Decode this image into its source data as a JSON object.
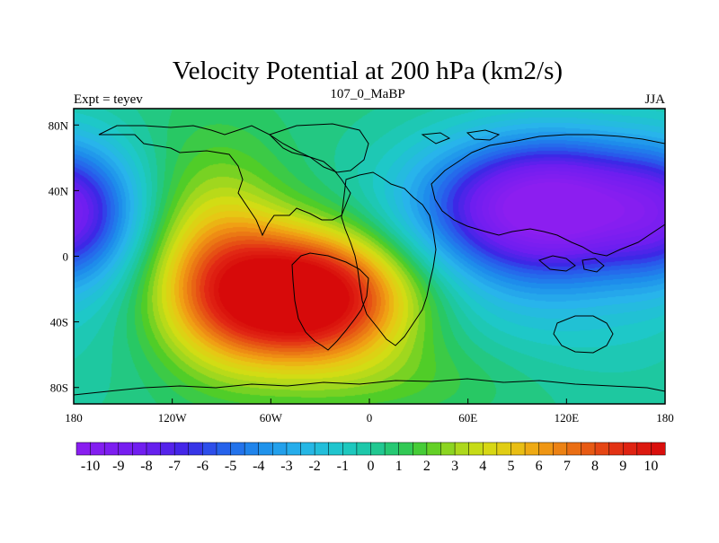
{
  "chart_data": {
    "type": "heatmap",
    "title": "Velocity Potential at 200 hPa (km2/s)",
    "subtitle_left": "Expt = teyev",
    "subtitle_center": "107_0_MaBP",
    "subtitle_right": "JJA",
    "x_range": [
      -180,
      180
    ],
    "y_range": [
      -90,
      90
    ],
    "x_ticks": [
      {
        "value": -180,
        "label": "180"
      },
      {
        "value": -120,
        "label": "120W"
      },
      {
        "value": -60,
        "label": "60W"
      },
      {
        "value": 0,
        "label": "0"
      },
      {
        "value": 60,
        "label": "60E"
      },
      {
        "value": 120,
        "label": "120E"
      },
      {
        "value": 180,
        "label": "180"
      }
    ],
    "y_ticks": [
      {
        "value": 80,
        "label": "80N"
      },
      {
        "value": 40,
        "label": "40N"
      },
      {
        "value": 0,
        "label": "0"
      },
      {
        "value": -40,
        "label": "40S"
      },
      {
        "value": -80,
        "label": "80S"
      }
    ],
    "colorbar": {
      "min": -10.5,
      "max": 10.5,
      "step": 0.5,
      "labels": [
        "-10",
        "-9",
        "-8",
        "-7",
        "-6",
        "-5",
        "-4",
        "-3",
        "-2",
        "-1",
        "0",
        "1",
        "2",
        "3",
        "4",
        "5",
        "6",
        "7",
        "8",
        "9",
        "10"
      ]
    },
    "field_centers": [
      {
        "name": "max",
        "lon": -40,
        "lat": -25,
        "value": 10.3
      },
      {
        "name": "min-east",
        "lon": 110,
        "lat": 30,
        "value": -10.3
      },
      {
        "name": "min-westedge",
        "lon": -185,
        "lat": 25,
        "value": -7
      }
    ]
  }
}
